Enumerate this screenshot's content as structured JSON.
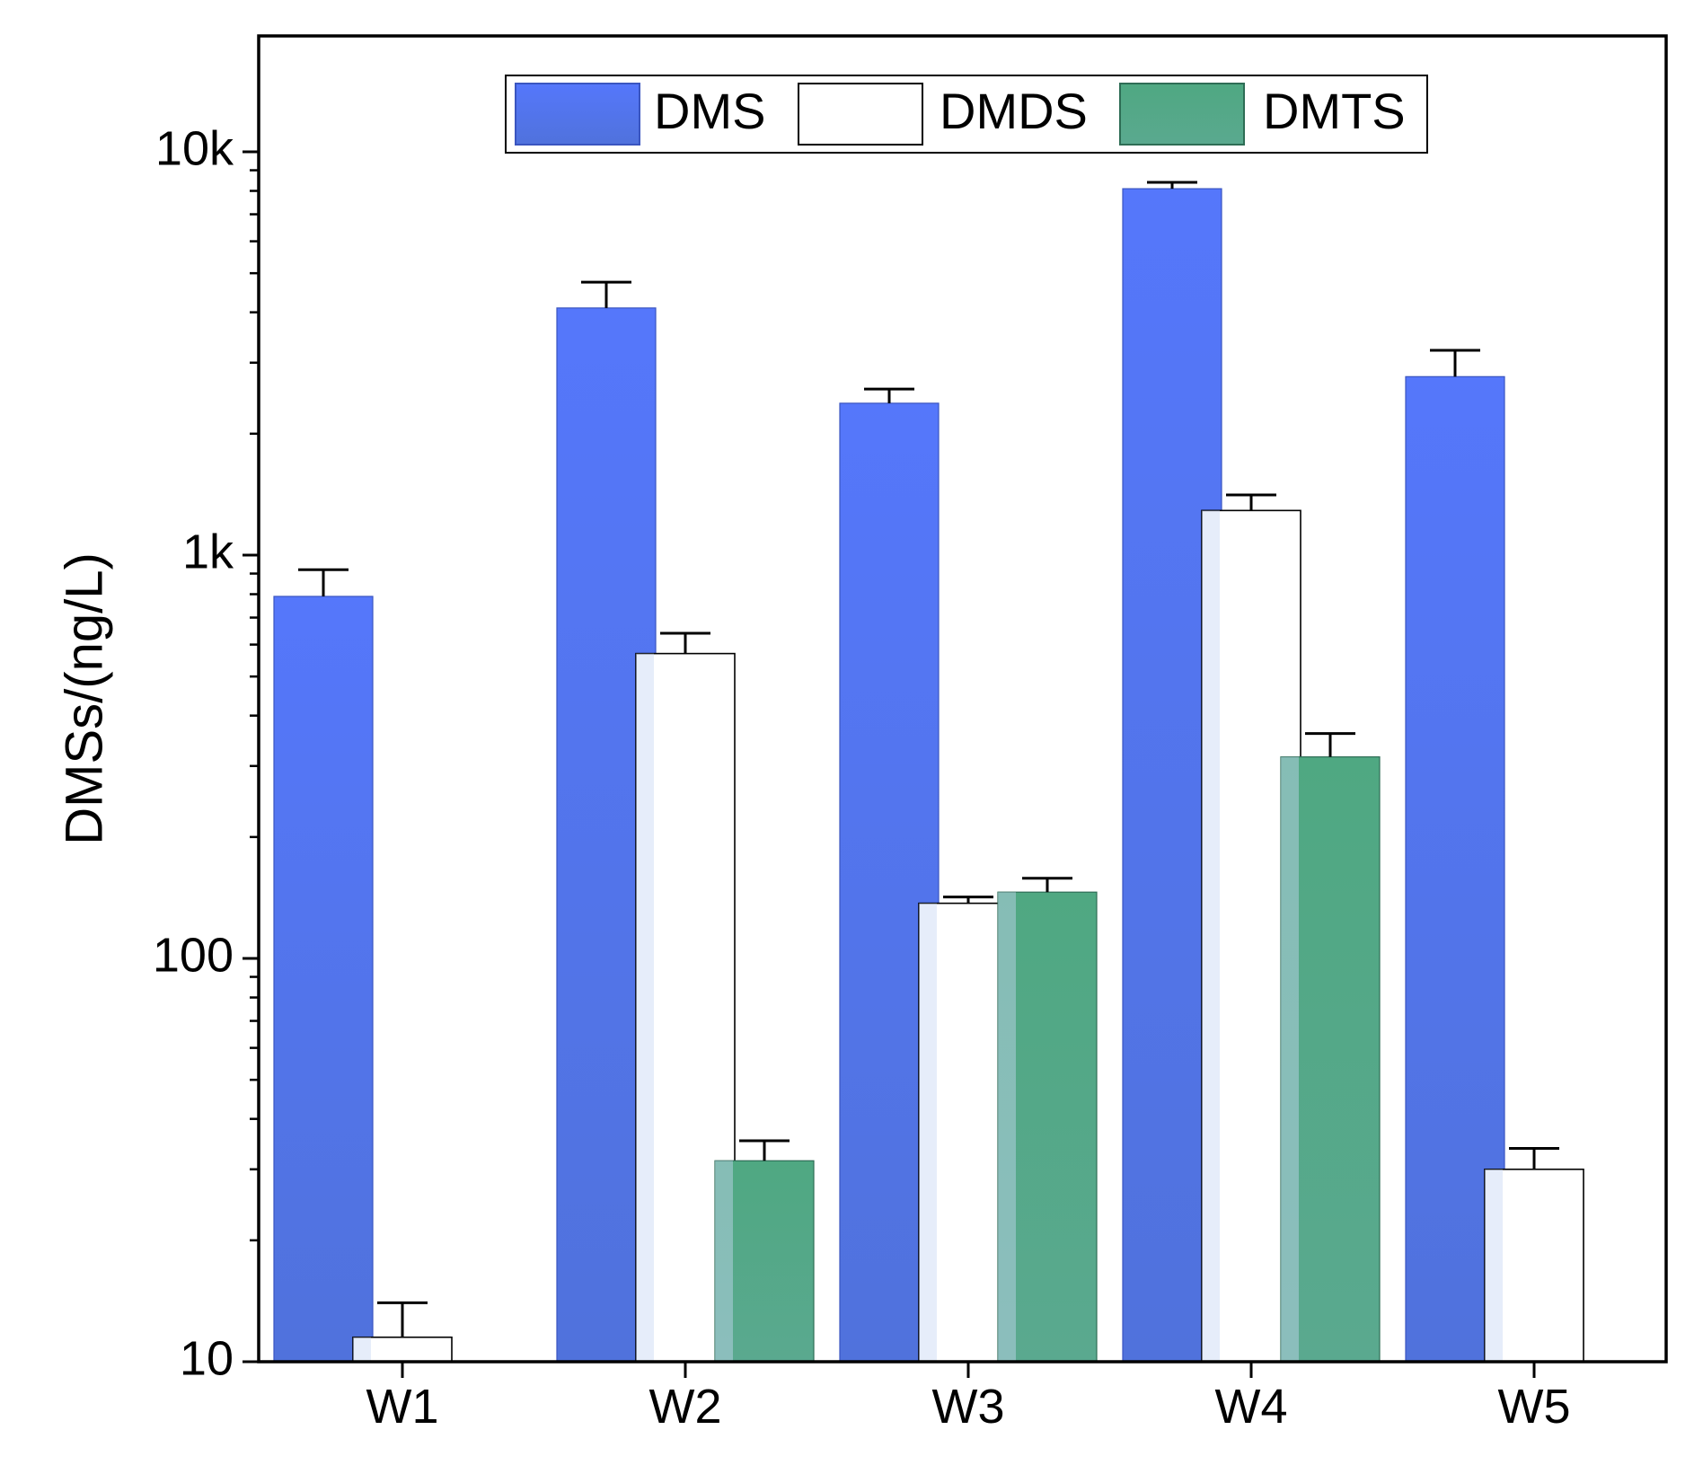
{
  "chart_data": {
    "type": "bar",
    "scale": "log",
    "categories": [
      "W1",
      "W2",
      "W3",
      "W4",
      "W5"
    ],
    "ylabel": "DMSs/(ng/L)",
    "xlabel": "",
    "ylim": [
      10,
      20000
    ],
    "yticks": [
      {
        "value": 10,
        "label": "10"
      },
      {
        "value": 100,
        "label": "100"
      },
      {
        "value": 1000,
        "label": "1k"
      },
      {
        "value": 10000,
        "label": "10k"
      }
    ],
    "legend_position": "top-center",
    "series": [
      {
        "name": "DMS",
        "color": "#5577f7",
        "values": [
          790,
          4100,
          2380,
          8100,
          2770
        ],
        "errors": [
          130,
          650,
          200,
          300,
          450
        ]
      },
      {
        "name": "DMDS",
        "color": "#ffffff",
        "values": [
          11.5,
          570,
          137,
          1290,
          30
        ],
        "errors": [
          2.5,
          70,
          5,
          120,
          3.8
        ]
      },
      {
        "name": "DMTS",
        "color": "#56a98c",
        "values": [
          null,
          31.5,
          146,
          316,
          null
        ],
        "errors": [
          null,
          3.8,
          12,
          45,
          null
        ]
      }
    ]
  }
}
